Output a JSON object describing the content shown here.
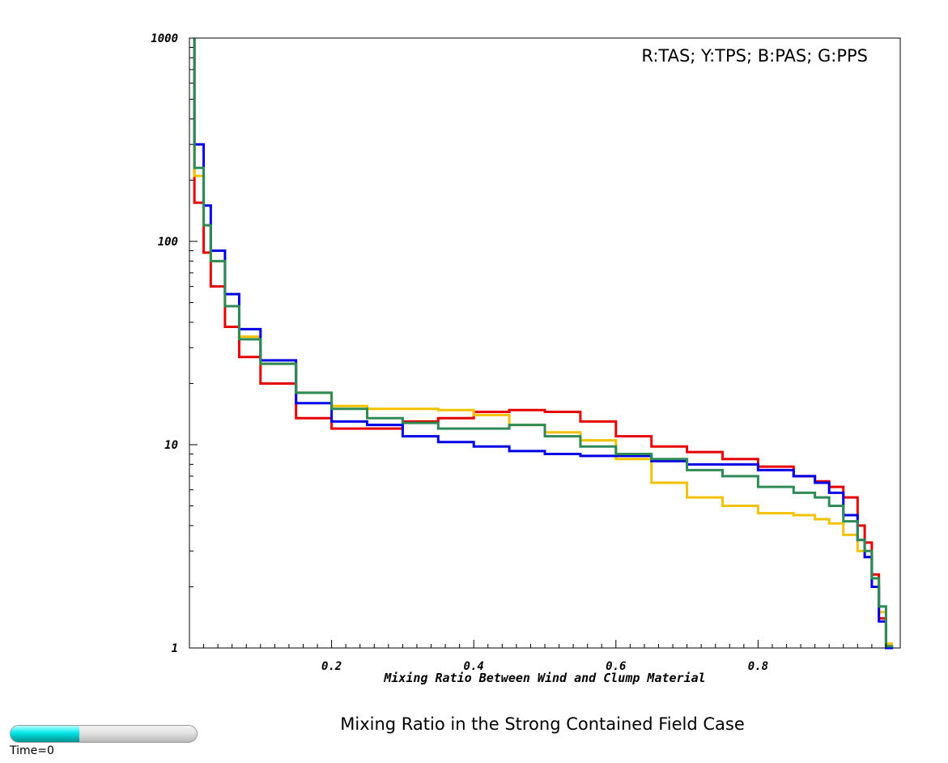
{
  "chart_data": {
    "type": "line",
    "title": "",
    "xlabel": "Mixing Ratio Between Wind and Clump Material",
    "ylabel": "",
    "xlim": [
      0.0,
      1.0
    ],
    "ylim": [
      1,
      1000
    ],
    "yscale": "log",
    "grid": false,
    "legend_text": "R:TAS; Y:TPS; B:PAS; G:PPS",
    "legend_placement": "top-right",
    "x_ticks": [
      0.2,
      0.4,
      0.6,
      0.8
    ],
    "x_tick_labels": [
      "0.2",
      "0.4",
      "0.6",
      "0.8"
    ],
    "y_ticks": [
      1,
      10,
      100,
      1000
    ],
    "y_tick_labels": [
      "1",
      "10",
      "100",
      "1000"
    ],
    "x": [
      0.01,
      0.02,
      0.03,
      0.05,
      0.07,
      0.1,
      0.15,
      0.2,
      0.25,
      0.3,
      0.35,
      0.4,
      0.45,
      0.5,
      0.55,
      0.6,
      0.65,
      0.7,
      0.75,
      0.8,
      0.85,
      0.88,
      0.9,
      0.92,
      0.94,
      0.95,
      0.96,
      0.97,
      0.98
    ],
    "series": [
      {
        "color": "#e60000",
        "values": [
          155,
          88,
          60,
          38,
          27,
          20,
          13.5,
          12,
          12,
          13,
          13.5,
          14.5,
          14.8,
          14.5,
          13,
          11,
          9.8,
          9.2,
          8.5,
          7.8,
          7,
          6.6,
          6.2,
          5.5,
          4,
          3.3,
          2.3,
          1.4,
          1.02
        ]
      },
      {
        "color": "#f2c200",
        "values": [
          210,
          120,
          80,
          48,
          34,
          25,
          18,
          15.5,
          15,
          15,
          14.8,
          14,
          12.5,
          11.5,
          10.5,
          8.5,
          6.5,
          5.5,
          5,
          4.6,
          4.5,
          4.3,
          4.1,
          3.6,
          3,
          2.8,
          2.2,
          1.5,
          1.05
        ]
      },
      {
        "color": "#0000e6",
        "values": [
          300,
          150,
          90,
          55,
          37,
          26,
          16,
          13,
          12.5,
          11,
          10.3,
          9.8,
          9.3,
          9,
          8.8,
          8.8,
          8.3,
          8,
          8,
          7.5,
          7,
          6.5,
          5.8,
          4.5,
          3.4,
          2.8,
          2,
          1.35,
          1.0
        ]
      },
      {
        "color": "#2e8b57",
        "values": [
          230,
          120,
          80,
          48,
          33,
          25,
          18,
          15,
          13.5,
          12.8,
          12,
          12,
          12.5,
          11,
          9.8,
          9,
          8.5,
          7.5,
          7,
          6.2,
          5.8,
          5.5,
          5,
          4.2,
          3.4,
          3,
          2.2,
          1.6,
          1.02
        ]
      }
    ]
  },
  "caption": "Mixing Ratio in the Strong Contained Field Case",
  "time_slider": {
    "label": "Time=0",
    "progress": 0.37,
    "fill_color": "#00e6e6"
  }
}
